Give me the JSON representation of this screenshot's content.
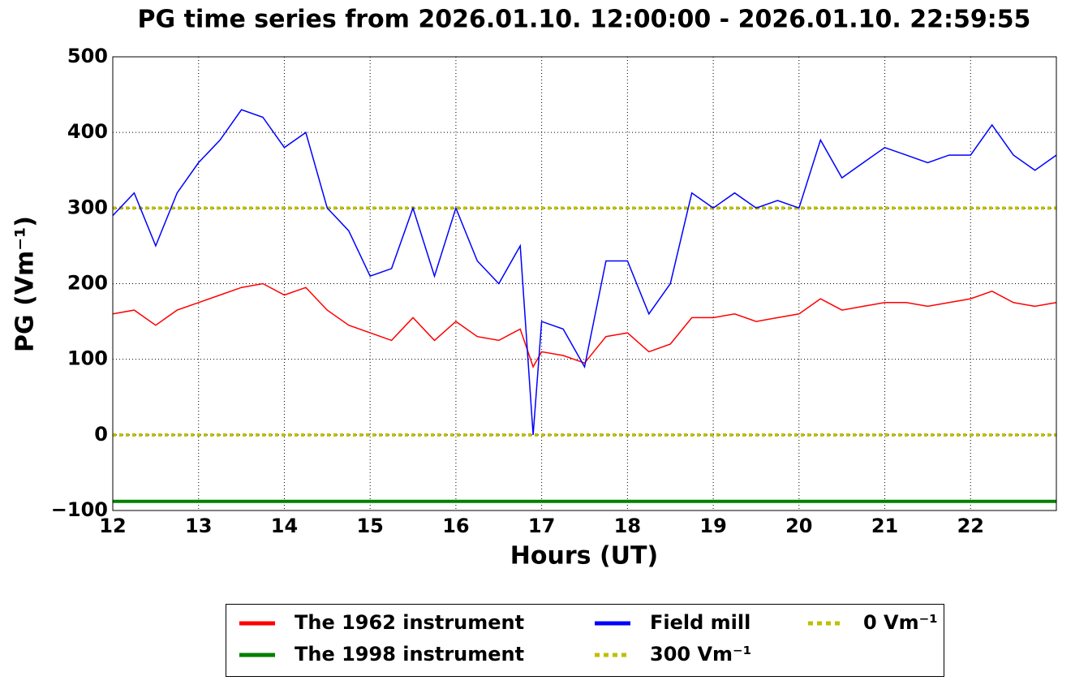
{
  "chart_data": {
    "type": "line",
    "title": "PG time series from 2026.01.10. 12:00:00 - 2026.01.10. 22:59:55",
    "x_label": "Hours (UT)",
    "y_label": "PG (Vm⁻¹)",
    "x": [
      12.0,
      12.25,
      12.5,
      12.75,
      13.0,
      13.25,
      13.5,
      13.75,
      14.0,
      14.25,
      14.5,
      14.75,
      15.0,
      15.25,
      15.5,
      15.75,
      16.0,
      16.25,
      16.5,
      16.75,
      16.9,
      17.0,
      17.25,
      17.5,
      17.75,
      18.0,
      18.25,
      18.5,
      18.75,
      19.0,
      19.25,
      19.5,
      19.75,
      20.0,
      20.25,
      20.5,
      20.75,
      21.0,
      21.25,
      21.5,
      21.75,
      22.0,
      22.25,
      22.5,
      22.75,
      23.0
    ],
    "series": [
      {
        "name": "The 1962 instrument",
        "color": "#ff0000",
        "values": [
          160,
          165,
          145,
          165,
          175,
          185,
          195,
          200,
          185,
          195,
          165,
          145,
          135,
          125,
          155,
          125,
          150,
          130,
          125,
          140,
          90,
          110,
          105,
          95,
          130,
          135,
          110,
          120,
          155,
          155,
          160,
          150,
          155,
          160,
          180,
          165,
          170,
          175,
          175,
          170,
          175,
          180,
          190,
          175,
          170,
          175
        ]
      },
      {
        "name": "The 1998 instrument",
        "color": "#008000",
        "values": [
          -88,
          -88,
          -88,
          -88,
          -88,
          -88,
          -88,
          -88,
          -88,
          -88,
          -88,
          -88,
          -88,
          -88,
          -88,
          -88,
          -88,
          -88,
          -88,
          -88,
          -88,
          -88,
          -88,
          -88,
          -88,
          -88,
          -88,
          -88,
          -88,
          -88,
          -88,
          -88,
          -88,
          -88,
          -88,
          -88,
          -88,
          -88,
          -88,
          -88,
          -88,
          -88,
          -88,
          -88,
          -88,
          -88
        ]
      },
      {
        "name": "Field mill",
        "color": "#0000ff",
        "values": [
          290,
          320,
          250,
          320,
          360,
          390,
          430,
          420,
          380,
          400,
          300,
          270,
          210,
          220,
          300,
          210,
          300,
          230,
          200,
          250,
          0,
          150,
          140,
          90,
          230,
          230,
          160,
          200,
          320,
          300,
          320,
          300,
          310,
          300,
          390,
          340,
          360,
          380,
          370,
          360,
          370,
          370,
          410,
          370,
          350,
          370
        ]
      }
    ],
    "hlines": [
      {
        "name": "300 Vm⁻¹",
        "value": 300,
        "color": "#bfbf00"
      },
      {
        "name": "0 Vm⁻¹",
        "value": 0,
        "color": "#bfbf00"
      }
    ],
    "xlim": [
      12,
      23
    ],
    "xticks": [
      12,
      13,
      14,
      15,
      16,
      17,
      18,
      19,
      20,
      21,
      22
    ],
    "ylim": [
      -100,
      500
    ],
    "yticks": [
      {
        "value": -100,
        "label": "−100"
      },
      0,
      100,
      200,
      300,
      400,
      500
    ],
    "grid": true
  }
}
